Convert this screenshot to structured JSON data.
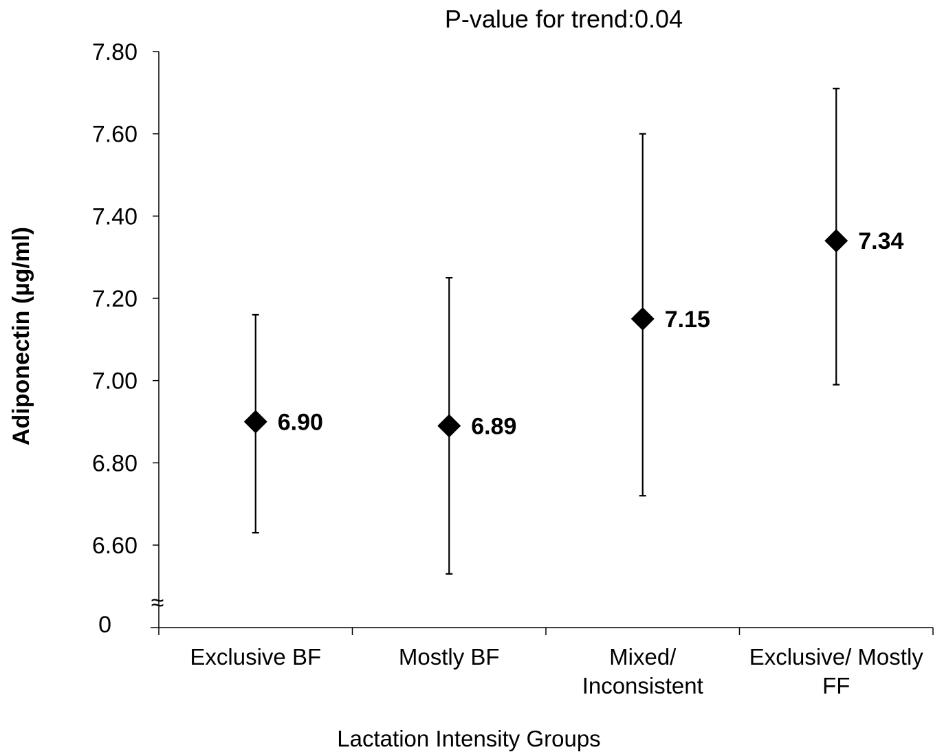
{
  "chart_data": {
    "type": "scatter",
    "title": "P-value for trend:0.04",
    "xlabel": "Lactation Intensity Groups",
    "ylabel": "Adiponectin (µg/ml)",
    "ylim": [
      6.5,
      7.8
    ],
    "y_ticks": [
      "7.80",
      "7.60",
      "7.40",
      "7.20",
      "7.00",
      "6.80",
      "6.60"
    ],
    "y_ticks_values": [
      7.8,
      7.6,
      7.4,
      7.2,
      7.0,
      6.8,
      6.6
    ],
    "y_zero_label": "0",
    "axis_break_symbol": "≈",
    "categories": [
      [
        "Exclusive BF"
      ],
      [
        "Mostly BF"
      ],
      [
        "Mixed/",
        "Inconsistent"
      ],
      [
        "Exclusive/ Mostly",
        "FF"
      ]
    ],
    "series": [
      {
        "values": [
          6.9,
          6.89,
          7.15,
          7.34
        ],
        "value_labels": [
          "6.90",
          "6.89",
          "7.15",
          "7.34"
        ],
        "error_low": [
          6.63,
          6.53,
          6.72,
          6.99
        ],
        "error_high": [
          7.16,
          7.25,
          7.6,
          7.71
        ],
        "marker": "diamond",
        "color": "#000000"
      }
    ],
    "grid": false,
    "legend": "none"
  }
}
